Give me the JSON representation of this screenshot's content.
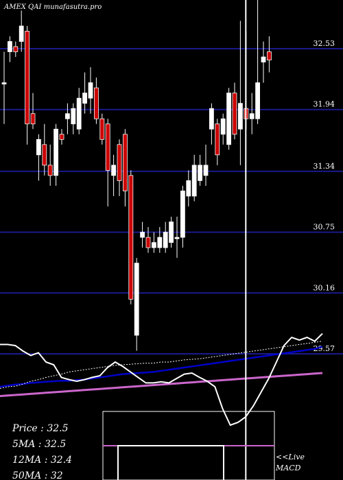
{
  "chart_data": {
    "type": "candlestick",
    "title": "AMEX  QAI munafasutra.pro",
    "y_ticks": [
      32.53,
      31.94,
      31.34,
      30.75,
      30.16,
      29.57
    ],
    "ylim": [
      29.57,
      33.5
    ],
    "grid": true,
    "candles": [
      {
        "o": 32.2,
        "c": 32.2,
        "h": 32.5,
        "l": 31.8,
        "color": "white"
      },
      {
        "o": 32.5,
        "c": 32.6,
        "h": 32.65,
        "l": 32.4,
        "color": "white"
      },
      {
        "o": 32.55,
        "c": 32.5,
        "h": 32.6,
        "l": 32.45,
        "color": "red"
      },
      {
        "o": 32.6,
        "c": 32.75,
        "h": 32.9,
        "l": 32.5,
        "color": "white"
      },
      {
        "o": 32.7,
        "c": 31.8,
        "h": 32.75,
        "l": 31.6,
        "color": "red"
      },
      {
        "o": 31.9,
        "c": 31.8,
        "h": 32.1,
        "l": 31.75,
        "color": "red"
      },
      {
        "o": 31.65,
        "c": 31.5,
        "h": 31.7,
        "l": 31.25,
        "color": "white"
      },
      {
        "o": 31.6,
        "c": 31.4,
        "h": 31.8,
        "l": 31.3,
        "color": "red"
      },
      {
        "o": 31.4,
        "c": 31.3,
        "h": 31.6,
        "l": 31.2,
        "color": "red"
      },
      {
        "o": 31.3,
        "c": 31.75,
        "h": 31.8,
        "l": 31.2,
        "color": "white"
      },
      {
        "o": 31.7,
        "c": 31.65,
        "h": 31.75,
        "l": 31.6,
        "color": "red"
      },
      {
        "o": 31.9,
        "c": 31.85,
        "h": 32.0,
        "l": 31.7,
        "color": "white"
      },
      {
        "o": 31.8,
        "c": 31.95,
        "h": 32.0,
        "l": 31.7,
        "color": "white"
      },
      {
        "o": 31.75,
        "c": 32.05,
        "h": 32.15,
        "l": 31.7,
        "color": "white"
      },
      {
        "o": 32.0,
        "c": 32.1,
        "h": 32.3,
        "l": 31.9,
        "color": "white"
      },
      {
        "o": 32.05,
        "c": 32.2,
        "h": 32.35,
        "l": 31.9,
        "color": "white"
      },
      {
        "o": 32.15,
        "c": 31.85,
        "h": 32.25,
        "l": 31.8,
        "color": "red"
      },
      {
        "o": 31.85,
        "c": 31.65,
        "h": 31.9,
        "l": 31.6,
        "color": "red"
      },
      {
        "o": 31.8,
        "c": 31.35,
        "h": 31.85,
        "l": 31.0,
        "color": "red"
      },
      {
        "o": 31.3,
        "c": 31.4,
        "h": 31.5,
        "l": 31.1,
        "color": "white"
      },
      {
        "o": 31.6,
        "c": 31.25,
        "h": 31.65,
        "l": 31.1,
        "color": "red"
      },
      {
        "o": 31.7,
        "c": 31.15,
        "h": 31.75,
        "l": 31.0,
        "color": "red"
      },
      {
        "o": 31.3,
        "c": 30.1,
        "h": 31.35,
        "l": 30.05,
        "color": "red"
      },
      {
        "o": 29.75,
        "c": 30.45,
        "h": 30.5,
        "l": 29.6,
        "color": "white"
      },
      {
        "o": 30.7,
        "c": 30.75,
        "h": 30.85,
        "l": 30.6,
        "color": "white"
      },
      {
        "o": 30.7,
        "c": 30.6,
        "h": 30.8,
        "l": 30.55,
        "color": "red"
      },
      {
        "o": 30.6,
        "c": 30.65,
        "h": 30.75,
        "l": 30.55,
        "color": "white"
      },
      {
        "o": 30.6,
        "c": 30.7,
        "h": 30.8,
        "l": 30.55,
        "color": "white"
      },
      {
        "o": 30.6,
        "c": 30.75,
        "h": 30.85,
        "l": 30.55,
        "color": "white"
      },
      {
        "o": 30.65,
        "c": 30.85,
        "h": 30.9,
        "l": 30.6,
        "color": "white"
      },
      {
        "o": 30.7,
        "c": 30.7,
        "h": 30.9,
        "l": 30.5,
        "color": "white"
      },
      {
        "o": 30.7,
        "c": 31.15,
        "h": 31.2,
        "l": 30.6,
        "color": "white"
      },
      {
        "o": 31.1,
        "c": 31.25,
        "h": 31.35,
        "l": 31.0,
        "color": "white"
      },
      {
        "o": 31.1,
        "c": 31.4,
        "h": 31.5,
        "l": 31.05,
        "color": "white"
      },
      {
        "o": 31.25,
        "c": 31.4,
        "h": 31.5,
        "l": 31.2,
        "color": "white"
      },
      {
        "o": 31.3,
        "c": 31.4,
        "h": 31.6,
        "l": 31.2,
        "color": "white"
      },
      {
        "o": 31.75,
        "c": 31.95,
        "h": 32.0,
        "l": 31.6,
        "color": "white"
      },
      {
        "o": 31.8,
        "c": 31.5,
        "h": 31.85,
        "l": 31.4,
        "color": "red"
      },
      {
        "o": 31.7,
        "c": 31.85,
        "h": 31.9,
        "l": 31.6,
        "color": "white"
      },
      {
        "o": 31.6,
        "c": 32.1,
        "h": 32.15,
        "l": 31.55,
        "color": "white"
      },
      {
        "o": 32.1,
        "c": 31.7,
        "h": 32.2,
        "l": 31.65,
        "color": "red"
      },
      {
        "o": 31.75,
        "c": 32.0,
        "h": 32.8,
        "l": 31.4,
        "color": "white"
      },
      {
        "o": 31.95,
        "c": 31.85,
        "h": 32.7,
        "l": 31.75,
        "color": "red"
      },
      {
        "o": 31.85,
        "c": 31.9,
        "h": 32.1,
        "l": 31.7,
        "color": "white"
      },
      {
        "o": 31.85,
        "c": 32.2,
        "h": 33.5,
        "l": 31.8,
        "color": "white"
      },
      {
        "o": 32.4,
        "c": 32.45,
        "h": 32.6,
        "l": 32.2,
        "color": "white"
      },
      {
        "o": 32.5,
        "c": 32.42,
        "h": 32.65,
        "l": 32.3,
        "color": "red"
      }
    ],
    "cursor_candle_index": 42,
    "ma_lines": {
      "mini_ylim": [
        0,
        100
      ],
      "price_line": [
        72,
        72,
        70,
        60,
        52,
        57,
        40,
        35,
        12,
        8,
        5,
        8,
        12,
        15,
        30,
        40,
        32,
        22,
        12,
        2,
        2,
        4,
        2,
        10,
        18,
        20,
        12,
        5,
        -5,
        -45,
        -75,
        -70,
        -60,
        -40,
        -15,
        10,
        40,
        70,
        85,
        80,
        85,
        78,
        92
      ],
      "ma_fast": [
        -8,
        -5,
        -4,
        0,
        5,
        8,
        12,
        15,
        18,
        22,
        24,
        26,
        28,
        30,
        32,
        34,
        35,
        36,
        37,
        38,
        38,
        40,
        40,
        42,
        44,
        45,
        46,
        48,
        50,
        52,
        54,
        56,
        58,
        60,
        62,
        64,
        66,
        68,
        70,
        72,
        74,
        76,
        78
      ],
      "ma_mid": [
        -5,
        -3,
        -1,
        0,
        2,
        3,
        4,
        5,
        6,
        6,
        7,
        8,
        10,
        12,
        14,
        16,
        18,
        19,
        20,
        21,
        22,
        24,
        26,
        28,
        30,
        32,
        34,
        36,
        38,
        40,
        42,
        44,
        46,
        48,
        50,
        52,
        54,
        56,
        58,
        60,
        62,
        64,
        68
      ],
      "ma_slow": [
        -22,
        -21,
        -20,
        -19,
        -18,
        -17,
        -16,
        -15,
        -14,
        -13,
        -12,
        -11,
        -10,
        -9,
        -8,
        -7,
        -6,
        -5,
        -4,
        -3,
        -2,
        -1,
        0,
        1,
        2,
        3,
        4,
        5,
        6,
        7,
        8,
        9,
        10,
        11,
        12,
        13,
        14,
        15,
        16,
        17,
        18,
        19,
        20
      ]
    },
    "legend": [
      {
        "label": "Price",
        "value": "32.5"
      },
      {
        "label": "5MA",
        "value": "32.5"
      },
      {
        "label": "12MA",
        "value": "32.4"
      },
      {
        "label": "50MA",
        "value": "32"
      }
    ],
    "macd_label": "<<Live MACD",
    "colors": {
      "background": "#000000",
      "grid": "#1a1a8c",
      "bull": "#ffffff",
      "bear": "#cc0000",
      "ma_fast": "#ffffff",
      "ma_mid": "#0000cc",
      "ma_slow": "#cc66cc",
      "macd_signal": "#cc66cc"
    }
  }
}
